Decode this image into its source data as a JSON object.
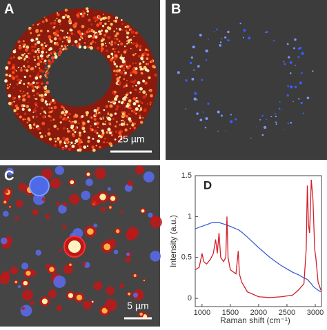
{
  "panels": {
    "a": {
      "label": "A",
      "scale_bar": "25 µm"
    },
    "b": {
      "label": "B"
    },
    "c": {
      "label": "C",
      "scale_bar": "5 µm"
    }
  },
  "chart_data": {
    "type": "line",
    "panel_label": "D",
    "x_label": "Raman shift (cm⁻¹)",
    "y_label": "Intensity (a.u.)",
    "x": [
      880,
      950,
      1000,
      1030,
      1080,
      1150,
      1200,
      1240,
      1270,
      1300,
      1330,
      1380,
      1420,
      1440,
      1460,
      1500,
      1600,
      1640,
      1660,
      1700,
      1800,
      2000,
      2200,
      2400,
      2600,
      2700,
      2800,
      2840,
      2860,
      2880,
      2900,
      2930,
      2960,
      2990,
      3010,
      3050,
      3100
    ],
    "series": [
      {
        "color": "#3b5fd8",
        "values": [
          0.85,
          0.87,
          0.88,
          0.89,
          0.9,
          0.92,
          0.93,
          0.93,
          0.93,
          0.93,
          0.92,
          0.91,
          0.9,
          0.9,
          0.89,
          0.88,
          0.85,
          0.84,
          0.83,
          0.81,
          0.75,
          0.62,
          0.5,
          0.4,
          0.32,
          0.29,
          0.25,
          0.24,
          0.23,
          0.22,
          0.2,
          0.18,
          0.15,
          0.13,
          0.12,
          0.1,
          0.08
        ]
      },
      {
        "color": "#d01f2a",
        "values": [
          0.35,
          0.38,
          0.55,
          0.45,
          0.42,
          0.48,
          0.55,
          0.72,
          0.55,
          0.8,
          0.5,
          0.45,
          0.5,
          1.0,
          0.5,
          0.35,
          0.3,
          0.58,
          0.3,
          0.2,
          0.08,
          0.02,
          0.01,
          0.02,
          0.04,
          0.1,
          0.18,
          0.6,
          1.38,
          0.9,
          0.8,
          1.45,
          1.2,
          0.6,
          0.5,
          0.2,
          0.1
        ]
      }
    ],
    "xlim": [
      880,
      3110
    ],
    "ylim": [
      -0.1,
      1.5
    ],
    "xticks": [
      1000,
      1500,
      2000,
      2500,
      3000
    ],
    "yticks": [
      0,
      0.5,
      1,
      1.5
    ]
  }
}
